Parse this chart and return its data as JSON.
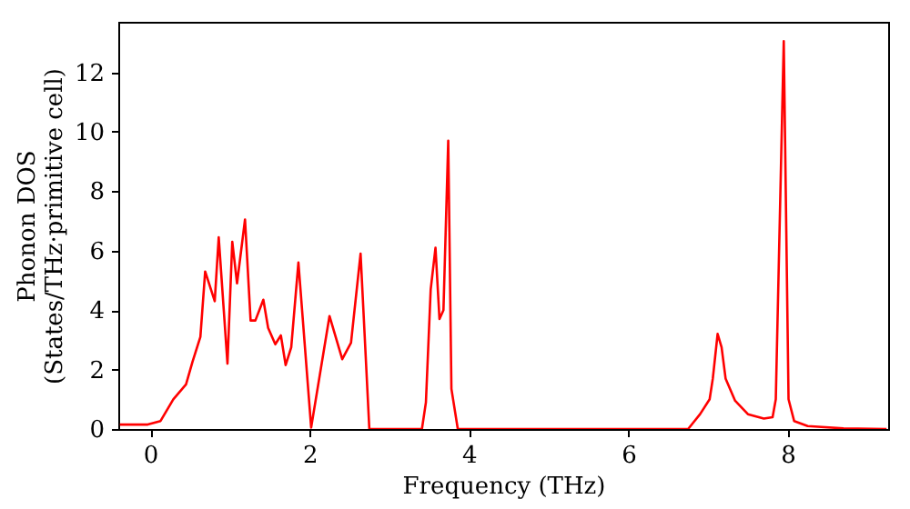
{
  "chart_data": {
    "type": "line",
    "xlabel": "Frequency (THz)",
    "ylabel": "Phonon DOS\n(States/THz·primitive cell)",
    "x": [
      -0.38,
      -0.03,
      0.13,
      0.29,
      0.45,
      0.53,
      0.63,
      0.69,
      0.81,
      0.86,
      0.97,
      1.03,
      1.09,
      1.19,
      1.26,
      1.32,
      1.42,
      1.48,
      1.57,
      1.64,
      1.7,
      1.77,
      1.86,
      2.02,
      2.25,
      2.41,
      2.52,
      2.64,
      2.75,
      3.41,
      3.46,
      3.52,
      3.58,
      3.63,
      3.68,
      3.74,
      3.78,
      3.86,
      6.75,
      6.9,
      7.02,
      7.06,
      7.12,
      7.17,
      7.22,
      7.34,
      7.5,
      7.7,
      7.81,
      7.85,
      7.95,
      8.01,
      8.08,
      8.25,
      8.7,
      9.24
    ],
    "series": [
      {
        "color": "#ff0000",
        "values": [
          0.15,
          0.15,
          0.27,
          1.0,
          1.5,
          2.25,
          3.1,
          5.3,
          4.3,
          6.45,
          2.2,
          6.3,
          4.9,
          7.05,
          3.65,
          3.65,
          4.35,
          3.4,
          2.85,
          3.15,
          2.15,
          2.75,
          5.6,
          0.05,
          3.8,
          2.35,
          2.9,
          5.9,
          0,
          0,
          0.9,
          4.7,
          6.1,
          3.7,
          4.0,
          9.7,
          1.35,
          0,
          0,
          0.5,
          1.0,
          1.7,
          3.2,
          2.75,
          1.7,
          0.95,
          0.5,
          0.35,
          0.4,
          1.0,
          13.05,
          1.0,
          0.27,
          0.1,
          0.02,
          0
        ]
      }
    ],
    "xlim": [
      -0.4,
      9.26
    ],
    "ylim": [
      0,
      13.7
    ],
    "xticks": [
      0,
      2,
      4,
      6,
      8
    ],
    "yticks": [
      0,
      2,
      4,
      6,
      8,
      10,
      12
    ],
    "grid": false,
    "line_style": "solid",
    "marker": "none"
  }
}
